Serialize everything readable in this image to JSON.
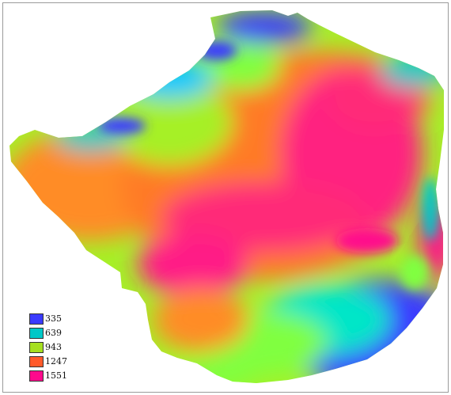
{
  "legend": {
    "entries": [
      {
        "label": "335",
        "color": "#3b3bff"
      },
      {
        "label": "639",
        "color": "#00c8c8"
      },
      {
        "label": "943",
        "color": "#a6e020"
      },
      {
        "label": "1247",
        "color": "#ff5a2a"
      },
      {
        "label": "1551",
        "color": "#ff0a8c"
      }
    ]
  },
  "map": {
    "subject": "elevation raster",
    "palette": {
      "low": "#3b3bff",
      "low_mid": "#00e6c8",
      "mid": "#a6f028",
      "high_mid": "#ff8c28",
      "high": "#ff0a8c"
    }
  }
}
